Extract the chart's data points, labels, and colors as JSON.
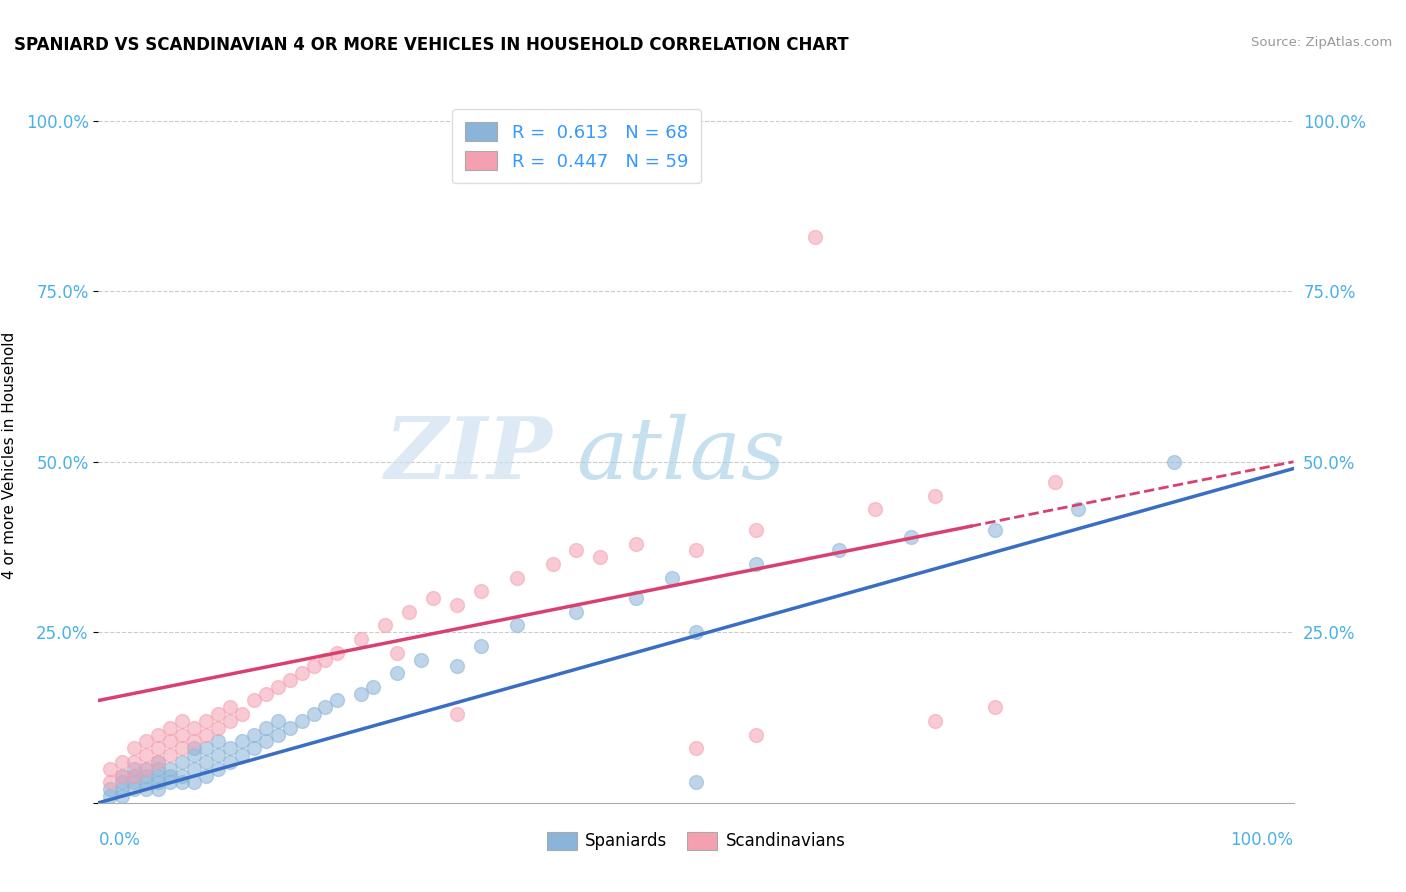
{
  "title": "SPANIARD VS SCANDINAVIAN 4 OR MORE VEHICLES IN HOUSEHOLD CORRELATION CHART",
  "source": "Source: ZipAtlas.com",
  "ylabel": "4 or more Vehicles in Household",
  "legend_entry1": "R =  0.613   N = 68",
  "legend_entry2": "R =  0.447   N = 59",
  "legend_label1": "Spaniards",
  "legend_label2": "Scandinavians",
  "watermark_zip": "ZIP",
  "watermark_atlas": "atlas",
  "blue_color": "#8ab4d8",
  "pink_color": "#f4a0b0",
  "blue_line_color": "#3a6ec4",
  "pink_line_color": "#d94070",
  "blue_R": 0.613,
  "pink_R": 0.447,
  "blue_N": 68,
  "pink_N": 59,
  "blue_intercept": 0.0,
  "blue_slope": 0.49,
  "pink_intercept": 0.15,
  "pink_slope": 0.35,
  "xlim": [
    0,
    1
  ],
  "ylim": [
    0,
    1
  ],
  "yticks": [
    0.0,
    0.25,
    0.5,
    0.75,
    1.0
  ],
  "ytick_labels": [
    "",
    "25.0%",
    "50.0%",
    "75.0%",
    "100.0%"
  ],
  "blue_scatter_x": [
    0.01,
    0.01,
    0.02,
    0.02,
    0.02,
    0.02,
    0.03,
    0.03,
    0.03,
    0.03,
    0.04,
    0.04,
    0.04,
    0.04,
    0.05,
    0.05,
    0.05,
    0.05,
    0.05,
    0.06,
    0.06,
    0.06,
    0.07,
    0.07,
    0.07,
    0.08,
    0.08,
    0.08,
    0.08,
    0.09,
    0.09,
    0.09,
    0.1,
    0.1,
    0.1,
    0.11,
    0.11,
    0.12,
    0.12,
    0.13,
    0.13,
    0.14,
    0.14,
    0.15,
    0.15,
    0.16,
    0.17,
    0.18,
    0.19,
    0.2,
    0.22,
    0.23,
    0.25,
    0.27,
    0.3,
    0.32,
    0.35,
    0.4,
    0.45,
    0.48,
    0.5,
    0.55,
    0.62,
    0.68,
    0.75,
    0.82,
    0.9,
    0.5
  ],
  "blue_scatter_y": [
    0.01,
    0.02,
    0.01,
    0.02,
    0.03,
    0.04,
    0.02,
    0.03,
    0.04,
    0.05,
    0.02,
    0.03,
    0.04,
    0.05,
    0.02,
    0.03,
    0.04,
    0.05,
    0.06,
    0.03,
    0.04,
    0.05,
    0.03,
    0.04,
    0.06,
    0.03,
    0.05,
    0.07,
    0.08,
    0.04,
    0.06,
    0.08,
    0.05,
    0.07,
    0.09,
    0.06,
    0.08,
    0.07,
    0.09,
    0.08,
    0.1,
    0.09,
    0.11,
    0.1,
    0.12,
    0.11,
    0.12,
    0.13,
    0.14,
    0.15,
    0.16,
    0.17,
    0.19,
    0.21,
    0.2,
    0.23,
    0.26,
    0.28,
    0.3,
    0.33,
    0.25,
    0.35,
    0.37,
    0.39,
    0.4,
    0.43,
    0.5,
    0.03
  ],
  "pink_scatter_x": [
    0.01,
    0.01,
    0.02,
    0.02,
    0.03,
    0.03,
    0.03,
    0.04,
    0.04,
    0.04,
    0.05,
    0.05,
    0.05,
    0.06,
    0.06,
    0.06,
    0.07,
    0.07,
    0.07,
    0.08,
    0.08,
    0.09,
    0.09,
    0.1,
    0.1,
    0.11,
    0.11,
    0.12,
    0.13,
    0.14,
    0.15,
    0.16,
    0.17,
    0.18,
    0.19,
    0.2,
    0.22,
    0.24,
    0.26,
    0.28,
    0.3,
    0.32,
    0.35,
    0.38,
    0.4,
    0.42,
    0.45,
    0.5,
    0.55,
    0.6,
    0.65,
    0.7,
    0.75,
    0.8,
    0.5,
    0.55,
    0.25,
    0.3,
    0.7
  ],
  "pink_scatter_y": [
    0.03,
    0.05,
    0.04,
    0.06,
    0.04,
    0.06,
    0.08,
    0.05,
    0.07,
    0.09,
    0.06,
    0.08,
    0.1,
    0.07,
    0.09,
    0.11,
    0.08,
    0.1,
    0.12,
    0.09,
    0.11,
    0.1,
    0.12,
    0.11,
    0.13,
    0.12,
    0.14,
    0.13,
    0.15,
    0.16,
    0.17,
    0.18,
    0.19,
    0.2,
    0.21,
    0.22,
    0.24,
    0.26,
    0.28,
    0.3,
    0.29,
    0.31,
    0.33,
    0.35,
    0.37,
    0.36,
    0.38,
    0.37,
    0.4,
    0.83,
    0.43,
    0.45,
    0.14,
    0.47,
    0.08,
    0.1,
    0.22,
    0.13,
    0.12
  ]
}
